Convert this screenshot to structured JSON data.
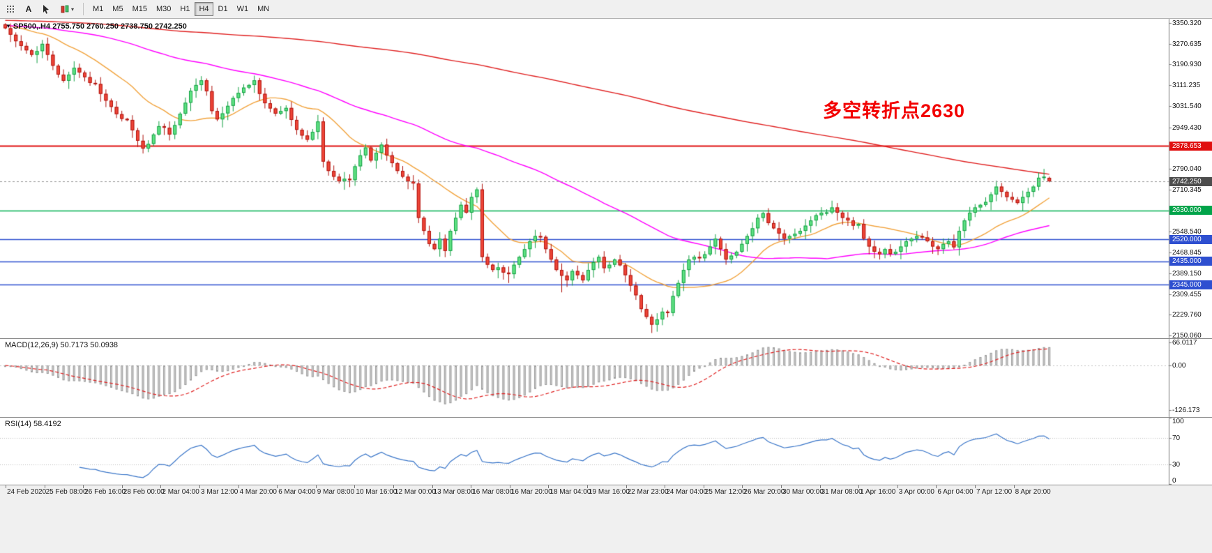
{
  "toolbar": {
    "icons": [
      {
        "name": "grid-dots-icon"
      },
      {
        "name": "text-tool-icon",
        "glyph": "A"
      },
      {
        "name": "cursor-tool-icon"
      },
      {
        "name": "new-order-icon"
      }
    ],
    "dropdown_caret": "▾",
    "timeframes": [
      {
        "label": "M1",
        "active": false
      },
      {
        "label": "M5",
        "active": false
      },
      {
        "label": "M15",
        "active": false
      },
      {
        "label": "M30",
        "active": false
      },
      {
        "label": "H1",
        "active": false
      },
      {
        "label": "H4",
        "active": true
      },
      {
        "label": "D1",
        "active": false
      },
      {
        "label": "W1",
        "active": false
      },
      {
        "label": "MN",
        "active": false
      }
    ]
  },
  "chart": {
    "symbol_label": "SP500,.H4",
    "ohlc_text": "2755.750 2760.250 2738.750 2742.250",
    "annotation": {
      "text": "多空转折点2630",
      "color": "#f20000"
    }
  },
  "macd": {
    "label": "MACD(12,26,9) 50.7173 50.0938",
    "axis_labels": [
      "66.0117",
      "0.00",
      "-126.173"
    ]
  },
  "rsi": {
    "label": "RSI(14) 58.4192",
    "axis_labels": [
      "100",
      "70",
      "30",
      "0"
    ]
  },
  "colors": {
    "candle_up_fill": "#5fe283",
    "candle_up_border": "#16a146",
    "candle_down_fill": "#ef4537",
    "candle_down_border": "#b01510",
    "macd_hist_fill": "#d8d8d8",
    "macd_hist_border": "#9c9c9c",
    "macd_signal": "#e02020",
    "rsi_line": "#3a76c9",
    "axis_line": "#808080"
  },
  "chart_data": {
    "type": "candlestick",
    "symbol": "SP500",
    "timeframe": "H4",
    "y_range": [
      2140,
      3366
    ],
    "first_open": 3345,
    "closes": [
      3330,
      3305,
      3280,
      3262,
      3245,
      3228,
      3242,
      3270,
      3228,
      3186,
      3152,
      3128,
      3152,
      3178,
      3160,
      3142,
      3120,
      3116,
      3078,
      3052,
      3028,
      3000,
      2982,
      2978,
      2938,
      2898,
      2868,
      2886,
      2922,
      2954,
      2948,
      2922,
      2958,
      3002,
      3044,
      3090,
      3112,
      3130,
      3088,
      3012,
      2980,
      3003,
      3032,
      3062,
      3082,
      3102,
      3112,
      3130,
      3078,
      3042,
      3022,
      3002,
      3012,
      3024,
      2978,
      2940,
      2918,
      2902,
      2932,
      2972,
      2818,
      2782,
      2760,
      2742,
      2752,
      2747,
      2800,
      2842,
      2872,
      2822,
      2852,
      2883,
      2842,
      2812,
      2782,
      2760,
      2742,
      2734,
      2602,
      2552,
      2502,
      2482,
      2522,
      2475,
      2552,
      2602,
      2652,
      2622,
      2682,
      2711,
      2452,
      2422,
      2402,
      2412,
      2392,
      2386,
      2422,
      2452,
      2482,
      2512,
      2532,
      2529,
      2482,
      2442,
      2402,
      2380,
      2362,
      2398,
      2382,
      2362,
      2402,
      2432,
      2452,
      2409,
      2422,
      2442,
      2420,
      2382,
      2342,
      2305,
      2252,
      2222,
      2192,
      2212,
      2242,
      2237,
      2302,
      2352,
      2402,
      2442,
      2452,
      2447,
      2462,
      2492,
      2522,
      2482,
      2442,
      2457,
      2472,
      2502,
      2532,
      2562,
      2602,
      2620,
      2582,
      2562,
      2542,
      2522,
      2532,
      2541,
      2552,
      2572,
      2592,
      2612,
      2622,
      2623,
      2642,
      2622,
      2602,
      2592,
      2572,
      2579,
      2522,
      2492,
      2472,
      2462,
      2482,
      2463,
      2472,
      2492,
      2512,
      2522,
      2532,
      2527,
      2512,
      2492,
      2482,
      2502,
      2512,
      2489,
      2552,
      2592,
      2622,
      2642,
      2652,
      2663,
      2692,
      2722,
      2702,
      2682,
      2672,
      2659,
      2682,
      2702,
      2722,
      2756,
      2760,
      2742.25
    ],
    "last_candle": {
      "open": 2755.75,
      "high": 2760.25,
      "low": 2738.75,
      "close": 2742.25
    },
    "extra_low_wicks": [
      [
        26,
        2853
      ],
      [
        95,
        2352
      ],
      [
        105,
        2316
      ],
      [
        122,
        2174
      ]
    ],
    "extra_high_wicks": [
      [
        7,
        3285
      ],
      [
        37,
        3137
      ],
      [
        196,
        2790
      ]
    ],
    "overlays": [
      {
        "name": "ma-fast",
        "type": "sma",
        "period": 18,
        "color": "#f2a33c",
        "history": 3340
      },
      {
        "name": "ma-mid",
        "type": "sma",
        "period": 66,
        "color": "#ff00ff",
        "history": 3340
      },
      {
        "name": "ma-slow",
        "type": "sma",
        "period": 220,
        "color": "#e02020",
        "history": 3360
      }
    ],
    "levels": [
      {
        "price": 2878.653,
        "label": "2878.653",
        "color": "#e01010",
        "badge": "#e01010",
        "style": "solid",
        "width": 1.8,
        "role": "resistance"
      },
      {
        "price": 2630.0,
        "label": "2630.000",
        "color": "#00b050",
        "badge": "#00a44a",
        "style": "solid",
        "width": 1.6,
        "role": "pivot"
      },
      {
        "price": 2520.0,
        "label": "2520.000",
        "color": "#2e4fd0",
        "badge": "#2e4fd0",
        "style": "solid",
        "width": 1.6,
        "role": "support"
      },
      {
        "price": 2435.0,
        "label": "2435.000",
        "color": "#2e4fd0",
        "badge": "#2e4fd0",
        "style": "solid",
        "width": 1.6,
        "role": "support"
      },
      {
        "price": 2345.0,
        "label": "2345.000",
        "color": "#2e4fd0",
        "badge": "#2e4fd0",
        "style": "solid",
        "width": 1.6,
        "role": "support"
      },
      {
        "price": 2742.25,
        "label": "2742.250",
        "color": "#9a9a9a",
        "badge": "#4d4d4d",
        "style": "dash",
        "width": 1,
        "role": "bid"
      }
    ],
    "y_tick_labels": [
      "3350.320",
      "3270.635",
      "3190.930",
      "3111.235",
      "3031.540",
      "2949.430",
      "2790.040",
      "2710.345",
      "2548.540",
      "2468.845",
      "2389.150",
      "2309.455",
      "2229.760",
      "2150.060"
    ],
    "x_tick_labels": [
      "24 Feb 2020",
      "25 Feb 08:00",
      "26 Feb 16:00",
      "28 Feb 00:00",
      "2 Mar 04:00",
      "3 Mar 12:00",
      "4 Mar 20:00",
      "6 Mar 04:00",
      "9 Mar 08:00",
      "10 Mar 16:00",
      "12 Mar 00:00",
      "13 Mar 08:00",
      "16 Mar 08:00",
      "16 Mar 20:00",
      "18 Mar 04:00",
      "19 Mar 16:00",
      "22 Mar 23:00",
      "24 Mar 04:00",
      "25 Mar 12:00",
      "26 Mar 20:00",
      "30 Mar 00:00",
      "31 Mar 08:00",
      "1 Apr 16:00",
      "3 Apr 00:00",
      "6 Apr 04:00",
      "7 Apr 12:00",
      "8 Apr 20:00"
    ],
    "indicators": [
      {
        "type": "macd",
        "params": [
          12,
          26,
          9
        ],
        "display_values": [
          50.7173,
          50.0938
        ],
        "panel_range": [
          75,
          -145
        ]
      },
      {
        "type": "rsi",
        "params": [
          14
        ],
        "display_value": 58.4192,
        "panel_range": [
          100,
          0
        ],
        "levels": [
          70,
          30
        ]
      }
    ]
  }
}
